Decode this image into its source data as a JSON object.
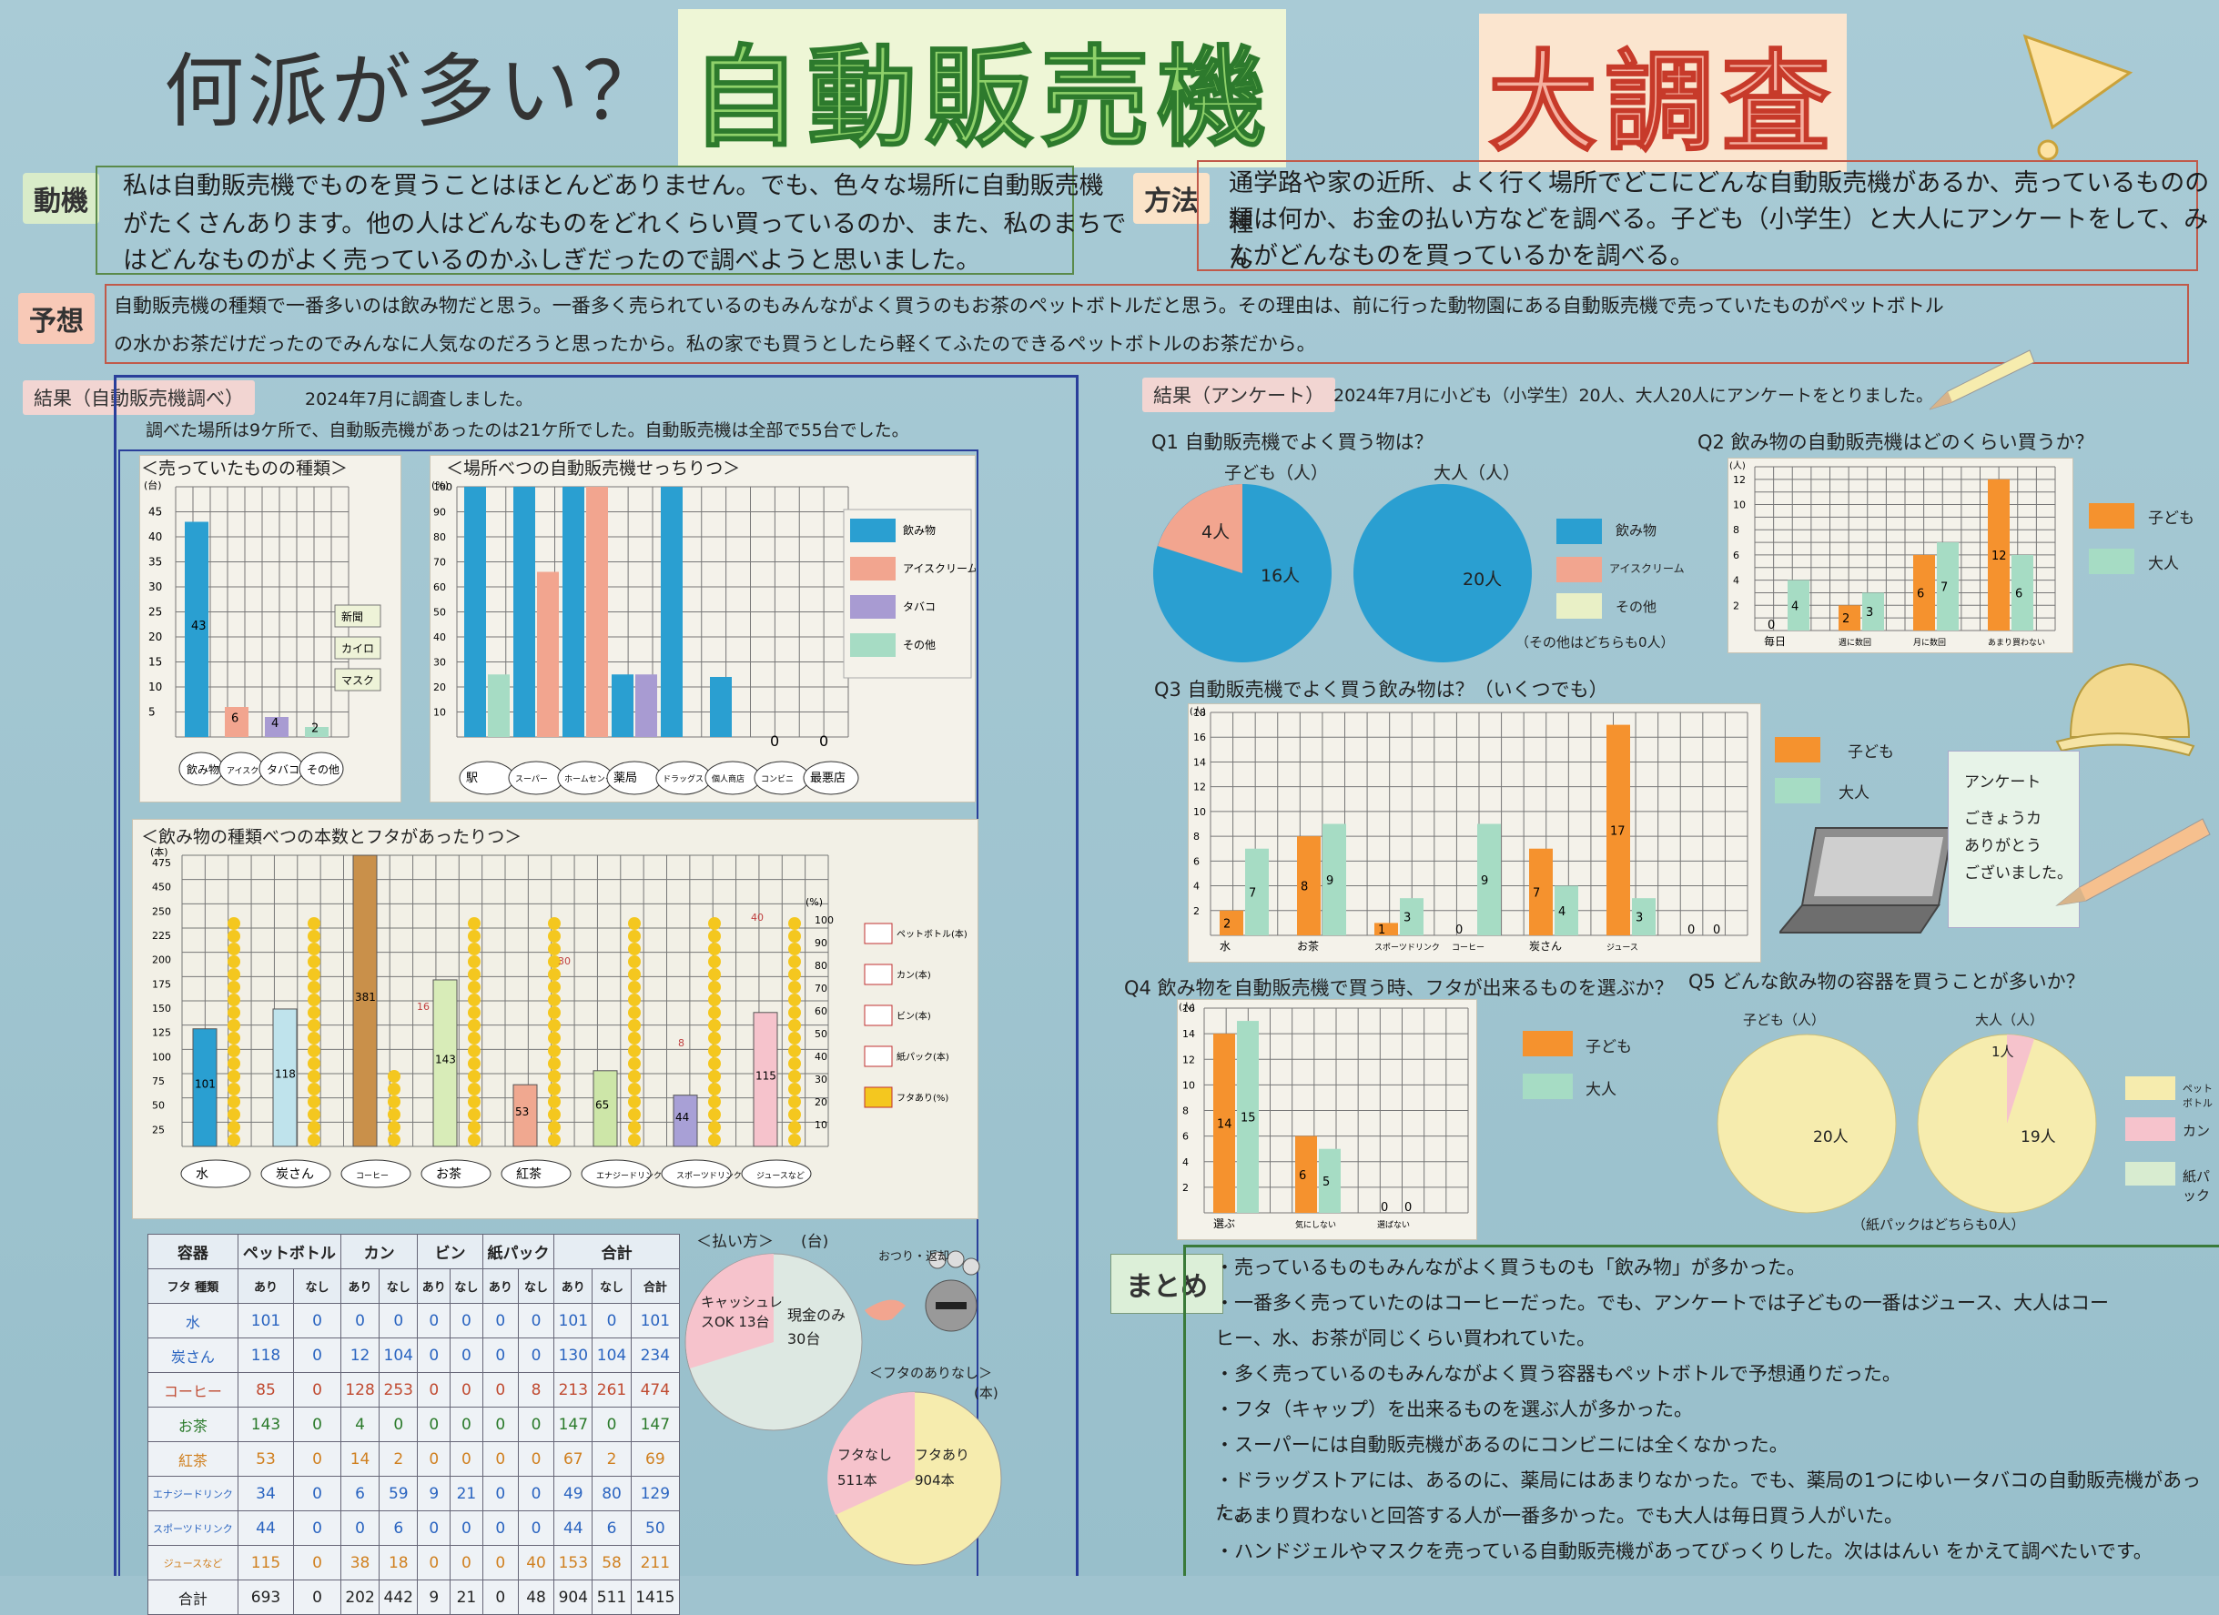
{
  "title": {
    "question": "何派が多い？",
    "main": "自動販売機",
    "main2": "大調査",
    "mark": "!"
  },
  "motive": {
    "label": "動機",
    "text": [
      "私は自動販売機でものを買うことはほとんどありません。でも、色々な場所に自動販売機",
      "がたくさんあります。他の人はどんなものをどれくらい買っているのか、また、私のまちで",
      "はどんなものがよく売っているのかふしぎだったので調べようと思いました。"
    ]
  },
  "method": {
    "label": "方法",
    "text": [
      "通学路や家の近所、よく行く場所でどこにどんな自動販売機があるか、売っているものの種",
      "類は何か、お金の払い方などを調べる。子ども（小学生）と大人にアンケートをして、みん",
      "ながどんなものを買っているかを調べる。"
    ]
  },
  "prediction": {
    "label": "予想",
    "text": [
      "自動販売機の種類で一番多いのは飲み物だと思う。一番多く売られているのもみんながよく買うのもお茶のペットボトルだと思う。その理由は、前に行った動物園にある自動販売機で売っていたものがペットボトル",
      "の水かお茶だけだったのでみんなに人気なのだろうと思ったから。私の家でも買うとしたら軽くてふたのできるペットボトルのお茶だから。"
    ]
  },
  "survey_results": {
    "label": "結果（自動販売機調べ）",
    "date": "2024年7月に調査しました。",
    "summary": "調べた場所は9ケ所で、自動販売機があったのは21ケ所でした。自動販売機は全部で55台でした。"
  },
  "chart1": {
    "title": "＜売っていたものの種類＞",
    "unit": "(台)",
    "yticks": [
      "45",
      "40",
      "35",
      "30",
      "25",
      "20",
      "15",
      "10",
      "5"
    ],
    "items": [
      {
        "label": "飲み物",
        "value": 43,
        "color": "#2a9fd1"
      },
      {
        "label": "アイスクリーム",
        "value": 6,
        "color": "#f2a58f"
      },
      {
        "label": "タバコ",
        "value": 4,
        "color": "#a89bd2"
      },
      {
        "label": "その他",
        "value": 2,
        "color": "#a6dcc4"
      }
    ],
    "deco": [
      "新聞",
      "カイロ",
      "マスク"
    ]
  },
  "chart2": {
    "title": "＜場所べつの自動販売機せっちりつ＞",
    "unit": "(%)",
    "yticks": [
      "100",
      "90",
      "80",
      "70",
      "60",
      "50",
      "40",
      "30",
      "20",
      "10"
    ],
    "categories": [
      "駅",
      "スーパー",
      "ホームセンター",
      "薬局",
      "ドラッグストア",
      "個人商店",
      "コンビニ",
      "最悪店"
    ],
    "legend": [
      "飲み物",
      "アイスクリーム",
      "タバコ",
      "その他"
    ],
    "series": [
      {
        "name": "飲み物",
        "values": [
          100,
          100,
          100,
          25,
          100,
          24,
          0,
          0
        ],
        "color": "#2a9fd1"
      },
      {
        "name": "アイスクリーム",
        "values": [
          0,
          66,
          100,
          0,
          0,
          0,
          0,
          0
        ],
        "color": "#f2a58f"
      },
      {
        "name": "タバコ",
        "values": [
          0,
          0,
          0,
          25,
          0,
          0,
          0,
          0
        ],
        "color": "#a89bd2"
      },
      {
        "name": "その他",
        "values": [
          25,
          0,
          0,
          0,
          0,
          0,
          0,
          0
        ],
        "color": "#a6dcc4"
      }
    ],
    "zero_labels": [
      "0",
      "0"
    ]
  },
  "chart3": {
    "title": "＜飲み物の種類べつの本数とフタがあったりつ＞",
    "unit_left": "(本)",
    "unit_right": "(%)",
    "yticks": [
      "475",
      "450",
      "250",
      "225",
      "200",
      "175",
      "150",
      "125",
      "100",
      "75",
      "50",
      "25"
    ],
    "rticks": [
      "100",
      "90",
      "80",
      "70",
      "60",
      "50",
      "40",
      "30",
      "20",
      "10"
    ],
    "categories": [
      "水",
      "炭さん",
      "コーヒー",
      "お茶",
      "紅茶",
      "エナジードリンク",
      "スポーツドリンク",
      "ジュースなど"
    ],
    "bars": [
      {
        "value": 101,
        "label": "101",
        "color": "#2a9fd1"
      },
      {
        "value": 118,
        "label": "118",
        "color": "#bfe3ec",
        "top": 116
      },
      {
        "value": 253,
        "label": "381",
        "color": "#c9904a",
        "base": 85
      },
      {
        "value": 143,
        "label": "143",
        "color": "#d8ecb8"
      },
      {
        "value": 53,
        "label": "53",
        "color": "#f0a890",
        "top": 16
      },
      {
        "value": 65,
        "label": "65",
        "color": "#cde6a8",
        "top": 30
      },
      {
        "value": 44,
        "label": "44",
        "color": "#a8a0d6"
      },
      {
        "value": 115,
        "label": "115",
        "color": "#f6c3cc",
        "top": 56
      }
    ],
    "rates": [
      100,
      100,
      33,
      100,
      100,
      100,
      100,
      100
    ],
    "legend": [
      "ペットボトル(本)",
      "カン(本)",
      "ビン(本)",
      "紙パック(本)",
      "フタあり(%)"
    ],
    "top_labels": [
      "40",
      "30",
      "16",
      "8"
    ]
  },
  "table": {
    "header": [
      "容器",
      "ペットボトル",
      "カン",
      "ビン",
      "紙パック",
      "合計"
    ],
    "sub": [
      "フタ 種類",
      "あり",
      "なし",
      "あり",
      "なし",
      "あり",
      "なし",
      "あり",
      "なし",
      "あり",
      "なし",
      "合計"
    ],
    "rows": [
      [
        "水",
        "101",
        "0",
        "0",
        "0",
        "0",
        "0",
        "0",
        "0",
        "101",
        "0",
        "101"
      ],
      [
        "炭さん",
        "118",
        "0",
        "12",
        "104",
        "0",
        "0",
        "0",
        "0",
        "130",
        "104",
        "234"
      ],
      [
        "コーヒー",
        "85",
        "0",
        "128",
        "253",
        "0",
        "0",
        "0",
        "8",
        "213",
        "261",
        "474"
      ],
      [
        "お茶",
        "143",
        "0",
        "4",
        "0",
        "0",
        "0",
        "0",
        "0",
        "147",
        "0",
        "147"
      ],
      [
        "紅茶",
        "53",
        "0",
        "14",
        "2",
        "0",
        "0",
        "0",
        "0",
        "67",
        "2",
        "69"
      ],
      [
        "エナジードリンク",
        "34",
        "0",
        "6",
        "59",
        "9",
        "21",
        "0",
        "0",
        "49",
        "80",
        "129"
      ],
      [
        "スポーツドリンク",
        "44",
        "0",
        "0",
        "6",
        "0",
        "0",
        "0",
        "0",
        "44",
        "6",
        "50"
      ],
      [
        "ジュースなど",
        "115",
        "0",
        "38",
        "18",
        "0",
        "0",
        "0",
        "40",
        "153",
        "58",
        "211"
      ],
      [
        "合計",
        "693",
        "0",
        "202",
        "442",
        "9",
        "21",
        "0",
        "48",
        "904",
        "511",
        "1415"
      ]
    ]
  },
  "pay": {
    "title": "＜払い方＞",
    "unit": "(台)",
    "cashless": "キャッシュレスOK 13台",
    "cash": "現金のみ 30台",
    "coin_label": "おつり・返却"
  },
  "cap": {
    "title": "＜フタのありなし＞",
    "unit": "(本)",
    "no": "フタなし 511本",
    "yes": "フタあり 904本"
  },
  "questionnaire": {
    "label": "結果（アンケート）",
    "date": "2024年7月に小ども（小学生）20人、大人20人にアンケートをとりました。"
  },
  "q1": {
    "title": "Q1 自動販売機でよく買う物は？",
    "child": "子ども（人）",
    "adult": "大人（人）",
    "child_values": [
      {
        "label": "16人",
        "v": 16,
        "color": "#2a9fd1"
      },
      {
        "label": "4人",
        "v": 4,
        "color": "#f2a58f"
      }
    ],
    "adult_values": [
      {
        "label": "20人",
        "v": 20,
        "color": "#2a9fd1"
      }
    ],
    "legend": [
      "飲み物",
      "アイスクリーム",
      "その他"
    ],
    "note": "（その他はどちらも0人）"
  },
  "q2": {
    "title": "Q2 飲み物の自動販売機はどのくらい買うか？",
    "unit": "(人)",
    "yticks": [
      "12",
      "10",
      "8",
      "6",
      "4",
      "2"
    ],
    "categories": [
      "毎日",
      "週に数回",
      "月に数回",
      "あまり買わない"
    ],
    "child": [
      0,
      2,
      6,
      12
    ],
    "adult": [
      4,
      3,
      7,
      6
    ],
    "legend": [
      "子ども",
      "大人"
    ]
  },
  "q3": {
    "title": "Q3 自動販売機でよく買う飲み物は？（いくつでも）",
    "unit": "(人)",
    "yticks": [
      "18",
      "16",
      "14",
      "12",
      "10",
      "8",
      "6",
      "4",
      "2"
    ],
    "categories": [
      "水",
      "お茶",
      "スポーツドリンク",
      "コーヒー",
      "炭さん",
      "ジュース",
      ""
    ],
    "child": [
      2,
      8,
      1,
      0,
      7,
      17,
      0
    ],
    "adult": [
      7,
      9,
      3,
      9,
      4,
      3,
      0
    ],
    "legend": [
      "子ども",
      "大人"
    ]
  },
  "memo": {
    "title": "アンケート",
    "text": [
      "ごきょうカ",
      "ありがとう",
      "ございました。"
    ]
  },
  "q4": {
    "title": "Q4 飲み物を自動販売機で買う時、フタが出来るものを選ぶか？",
    "unit": "(人)",
    "yticks": [
      "16",
      "14",
      "12",
      "10",
      "8",
      "6",
      "4",
      "2"
    ],
    "categories": [
      "選ぶ",
      "気にしない",
      "選ばない"
    ],
    "child": [
      14,
      6,
      0
    ],
    "adult": [
      15,
      5,
      0
    ],
    "legend": [
      "子ども",
      "大人"
    ]
  },
  "q5": {
    "title": "Q5 どんな飲み物の容器を買うことが多いか？",
    "child": "子ども（人）",
    "adult": "大人（人）",
    "child_label": "20人",
    "adult_labels": [
      "19人",
      "1人"
    ],
    "legend": [
      "ペットボトル",
      "カン",
      "紙パック"
    ],
    "note": "（紙パックはどちらも0人）"
  },
  "summary": {
    "label": "まとめ",
    "lines": [
      "・売っているものもみんながよく買うものも「飲み物」が多かった。",
      "・一番多く売っていたのはコーヒーだった。でも、アンケートでは子どもの一番はジュース、大人はコー",
      "ヒー、水、お茶が同じくらい買われていた。",
      "・多く売っているのもみんながよく買う容器もペットボトルで予想通りだった。",
      "・フタ（キャップ）を出来るものを選ぶ人が多かった。",
      "・スーパーには自動販売機があるのにコンビニには全くなかった。",
      "・ドラッグストアには、あるのに、薬局にはあまりなかった。でも、薬局の1つにゆいータバコの自動販売機があった。",
      "・あまり買わないと回答する人が一番多かった。でも大人は毎日買う人がいた。",
      "・ハンドジェルやマスクを売っている自動販売機があってびっくりした。次ははんい をかえて調べたいです。"
    ]
  },
  "colors": {
    "child": "#f5922e",
    "adult": "#a6dcc4",
    "drink": "#2a9fd1",
    "ice": "#f2a58f",
    "cream": "#f6ecae"
  }
}
